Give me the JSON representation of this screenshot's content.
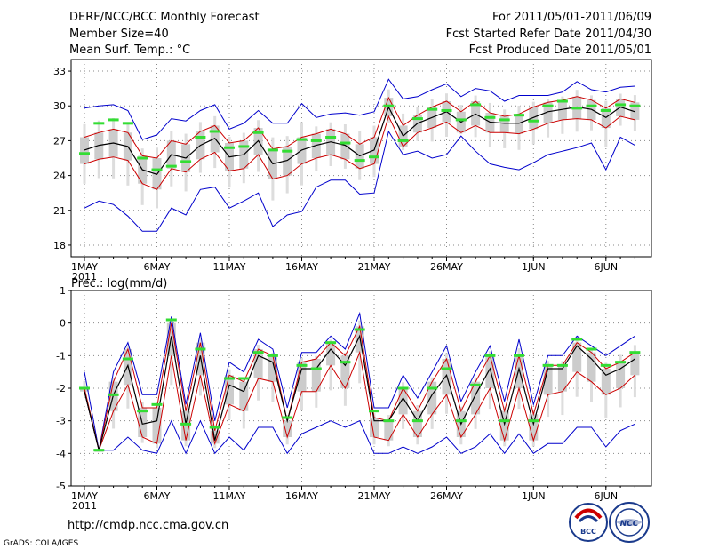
{
  "header": {
    "left": [
      "DERF/NCC/BCC Monthly Forecast",
      "Member Size=40",
      "Mean Surf. Temp.: °C"
    ],
    "right": [
      "For 2011/05/01-2011/06/09",
      "Fcst Started Refer Date 2011/04/30",
      "Fcst Produced Date 2011/05/01"
    ]
  },
  "footer": {
    "url": "http://cmdp.ncc.cma.gov.cn",
    "credit": "GrADS: COLA/IGES"
  },
  "logos": {
    "bcc": "BCC",
    "ncc": "NCC"
  },
  "colors": {
    "mean": "#000000",
    "std": "#cc0000",
    "range": "#0000cc",
    "box": "#cccccc",
    "obs": "#33dd33",
    "grid": "#888888"
  },
  "chart_data": [
    {
      "type": "line",
      "title": "Mean Surf. Temp.: °C",
      "x": [
        "1MAY",
        "2MAY",
        "3MAY",
        "4MAY",
        "5MAY",
        "6MAY",
        "7MAY",
        "8MAY",
        "9MAY",
        "10MAY",
        "11MAY",
        "12MAY",
        "13MAY",
        "14MAY",
        "15MAY",
        "16MAY",
        "17MAY",
        "18MAY",
        "19MAY",
        "20MAY",
        "21MAY",
        "22MAY",
        "23MAY",
        "24MAY",
        "25MAY",
        "26MAY",
        "27MAY",
        "28MAY",
        "29MAY",
        "30MAY",
        "31MAY",
        "1JUN",
        "2JUN",
        "3JUN",
        "4JUN",
        "5JUN",
        "6JUN",
        "7JUN",
        "8JUN"
      ],
      "xticks": [
        {
          "i": 0,
          "label": "1MAY",
          "sub": "2011"
        },
        {
          "i": 5,
          "label": "6MAY"
        },
        {
          "i": 10,
          "label": "11MAY"
        },
        {
          "i": 15,
          "label": "16MAY"
        },
        {
          "i": 20,
          "label": "21MAY"
        },
        {
          "i": 25,
          "label": "26MAY"
        },
        {
          "i": 31,
          "label": "1JUN"
        },
        {
          "i": 36,
          "label": "6JUN"
        }
      ],
      "ylim": [
        17,
        34
      ],
      "yticks": [
        "18",
        "21",
        "24",
        "27",
        "30",
        "33"
      ],
      "series": [
        {
          "name": "max",
          "values": [
            29.8,
            30.0,
            30.1,
            29.6,
            27.1,
            27.5,
            28.9,
            28.7,
            29.6,
            30.1,
            28.0,
            28.5,
            29.6,
            28.5,
            28.5,
            30.2,
            29.0,
            29.3,
            29.4,
            29.2,
            29.5,
            32.3,
            30.6,
            30.8,
            31.4,
            31.9,
            30.8,
            31.5,
            31.3,
            30.4,
            30.9,
            30.9,
            30.9,
            31.2,
            32.1,
            31.4,
            31.2,
            31.6,
            31.7
          ]
        },
        {
          "name": "mean_plus_std",
          "values": [
            27.3,
            27.7,
            28.0,
            27.7,
            25.7,
            25.5,
            27.0,
            26.7,
            27.8,
            28.3,
            26.8,
            27.0,
            28.1,
            26.3,
            26.5,
            27.3,
            27.6,
            28.0,
            27.6,
            26.7,
            27.3,
            30.7,
            28.3,
            29.2,
            29.9,
            30.4,
            29.5,
            30.4,
            29.4,
            29.1,
            29.3,
            29.9,
            30.3,
            30.5,
            30.8,
            30.5,
            29.8,
            30.6,
            30.3
          ]
        },
        {
          "name": "mean",
          "values": [
            26.2,
            26.6,
            26.8,
            26.5,
            24.5,
            24.1,
            25.8,
            25.5,
            26.6,
            27.2,
            25.6,
            25.8,
            27.0,
            25.0,
            25.3,
            26.2,
            26.6,
            26.9,
            26.6,
            25.7,
            26.2,
            29.9,
            27.4,
            28.5,
            29.0,
            29.5,
            28.6,
            29.3,
            28.6,
            28.5,
            28.5,
            29.0,
            29.5,
            29.7,
            29.9,
            29.7,
            29.0,
            29.9,
            29.5
          ]
        },
        {
          "name": "mean_minus_std",
          "values": [
            25.0,
            25.4,
            25.6,
            25.3,
            23.3,
            22.8,
            24.6,
            24.3,
            25.4,
            26.0,
            24.4,
            24.6,
            25.8,
            23.7,
            24.0,
            25.0,
            25.5,
            25.8,
            25.4,
            24.6,
            25.0,
            29.1,
            26.5,
            27.7,
            28.1,
            28.6,
            27.7,
            28.3,
            27.7,
            27.7,
            27.6,
            28.0,
            28.5,
            28.8,
            28.9,
            28.8,
            28.1,
            29.1,
            28.8
          ]
        },
        {
          "name": "min",
          "values": [
            21.2,
            21.8,
            21.5,
            20.5,
            19.2,
            19.2,
            21.2,
            20.6,
            22.8,
            23.0,
            21.2,
            21.8,
            22.5,
            19.6,
            20.6,
            20.9,
            23.0,
            23.6,
            23.6,
            22.4,
            22.5,
            27.8,
            25.8,
            26.1,
            25.5,
            25.8,
            27.4,
            26.1,
            25.0,
            24.7,
            24.5,
            25.1,
            25.8,
            26.1,
            26.4,
            26.8,
            24.5,
            27.3,
            26.6
          ]
        },
        {
          "name": "observed",
          "values": [
            25.9,
            28.5,
            28.8,
            28.5,
            25.5,
            24.5,
            24.8,
            25.2,
            27.3,
            27.8,
            26.4,
            26.5,
            27.7,
            26.2,
            26.1,
            27.1,
            27.0,
            27.3,
            26.8,
            25.3,
            25.6,
            30.0,
            27.0,
            28.9,
            29.7,
            29.6,
            28.8,
            30.1,
            29.0,
            28.8,
            29.2,
            28.7,
            30.0,
            30.4,
            29.8,
            30.0,
            29.6,
            30.1,
            30.0
          ]
        }
      ]
    },
    {
      "type": "line",
      "title": "Prec.: log(mm/d)",
      "x": [
        "1MAY",
        "2MAY",
        "3MAY",
        "4MAY",
        "5MAY",
        "6MAY",
        "7MAY",
        "8MAY",
        "9MAY",
        "10MAY",
        "11MAY",
        "12MAY",
        "13MAY",
        "14MAY",
        "15MAY",
        "16MAY",
        "17MAY",
        "18MAY",
        "19MAY",
        "20MAY",
        "21MAY",
        "22MAY",
        "23MAY",
        "24MAY",
        "25MAY",
        "26MAY",
        "27MAY",
        "28MAY",
        "29MAY",
        "30MAY",
        "31MAY",
        "1JUN",
        "2JUN",
        "3JUN",
        "4JUN",
        "5JUN",
        "6JUN",
        "7JUN",
        "8JUN"
      ],
      "xticks": [
        {
          "i": 0,
          "label": "1MAY",
          "sub": "2011"
        },
        {
          "i": 5,
          "label": "6MAY"
        },
        {
          "i": 10,
          "label": "11MAY"
        },
        {
          "i": 15,
          "label": "16MAY"
        },
        {
          "i": 20,
          "label": "21MAY"
        },
        {
          "i": 25,
          "label": "26MAY"
        },
        {
          "i": 31,
          "label": "1JUN"
        },
        {
          "i": 36,
          "label": "6JUN"
        }
      ],
      "ylim": [
        -5,
        1
      ],
      "yticks": [
        "-5",
        "-4",
        "-3",
        "-2",
        "-1",
        "0",
        "1"
      ],
      "series": [
        {
          "name": "max",
          "values": [
            -1.5,
            -3.9,
            -1.5,
            -0.6,
            -2.2,
            -2.2,
            0.2,
            -2.5,
            -0.3,
            -3.0,
            -1.2,
            -1.5,
            -0.5,
            -0.8,
            -2.6,
            -0.9,
            -0.9,
            -0.4,
            -0.8,
            0.3,
            -2.6,
            -2.6,
            -1.6,
            -2.3,
            -1.5,
            -0.7,
            -2.4,
            -1.5,
            -0.7,
            -2.4,
            -0.5,
            -2.5,
            -1.0,
            -1.0,
            -0.4,
            -0.7,
            -1.0,
            -0.7,
            -0.4
          ]
        },
        {
          "name": "mean_plus_std",
          "values": [
            -2.0,
            -3.9,
            -1.8,
            -0.8,
            -2.6,
            -2.6,
            0.0,
            -2.7,
            -0.6,
            -3.3,
            -1.6,
            -1.8,
            -0.8,
            -1.0,
            -3.0,
            -1.2,
            -1.1,
            -0.6,
            -1.0,
            -0.1,
            -2.9,
            -3.0,
            -2.0,
            -2.7,
            -1.8,
            -1.1,
            -2.7,
            -1.8,
            -1.0,
            -2.7,
            -1.0,
            -2.8,
            -1.3,
            -1.3,
            -0.6,
            -0.9,
            -1.4,
            -1.2,
            -0.9
          ]
        },
        {
          "name": "mean",
          "values": [
            -2.1,
            -3.9,
            -2.2,
            -1.3,
            -3.1,
            -3.0,
            -0.4,
            -3.1,
            -1.0,
            -3.6,
            -1.9,
            -2.1,
            -1.0,
            -1.2,
            -3.0,
            -1.4,
            -1.4,
            -0.8,
            -1.3,
            -0.4,
            -3.0,
            -3.0,
            -2.3,
            -3.0,
            -2.2,
            -1.6,
            -3.1,
            -2.2,
            -1.4,
            -3.1,
            -1.4,
            -3.1,
            -1.4,
            -1.4,
            -0.7,
            -1.1,
            -1.6,
            -1.4,
            -1.1
          ]
        },
        {
          "name": "mean_minus_std",
          "values": [
            -2.1,
            -3.9,
            -2.7,
            -1.9,
            -3.5,
            -3.7,
            -1.0,
            -3.6,
            -1.6,
            -3.7,
            -2.5,
            -2.7,
            -1.7,
            -1.8,
            -3.5,
            -2.1,
            -2.1,
            -1.3,
            -2.0,
            -0.9,
            -3.5,
            -3.6,
            -2.8,
            -3.5,
            -2.8,
            -2.2,
            -3.5,
            -2.8,
            -2.0,
            -3.6,
            -2.0,
            -3.6,
            -2.2,
            -2.1,
            -1.5,
            -1.8,
            -2.2,
            -2.0,
            -1.6
          ]
        },
        {
          "name": "min",
          "values": [
            -2.1,
            -3.9,
            -3.9,
            -3.5,
            -3.9,
            -4.0,
            -3.0,
            -4.0,
            -3.0,
            -4.0,
            -3.5,
            -3.9,
            -3.2,
            -3.2,
            -4.0,
            -3.4,
            -3.2,
            -3.0,
            -3.2,
            -3.0,
            -4.0,
            -4.0,
            -3.8,
            -4.0,
            -3.8,
            -3.5,
            -4.0,
            -3.8,
            -3.4,
            -4.0,
            -3.4,
            -4.0,
            -3.7,
            -3.7,
            -3.2,
            -3.2,
            -3.8,
            -3.3,
            -3.1
          ]
        },
        {
          "name": "observed",
          "values": [
            -2.0,
            -3.9,
            -2.2,
            -1.1,
            -2.7,
            -2.5,
            0.1,
            -3.1,
            -0.8,
            -3.2,
            -1.7,
            -1.7,
            -0.9,
            -1.0,
            -2.9,
            -1.3,
            -1.4,
            -0.6,
            -1.2,
            -0.2,
            -2.7,
            -3.0,
            -2.0,
            -3.0,
            -2.0,
            -1.4,
            -3.0,
            -1.9,
            -1.0,
            -3.0,
            -1.0,
            -3.0,
            -1.3,
            -1.3,
            -0.5,
            -0.8,
            -1.3,
            -1.2,
            -0.9
          ]
        }
      ]
    }
  ]
}
